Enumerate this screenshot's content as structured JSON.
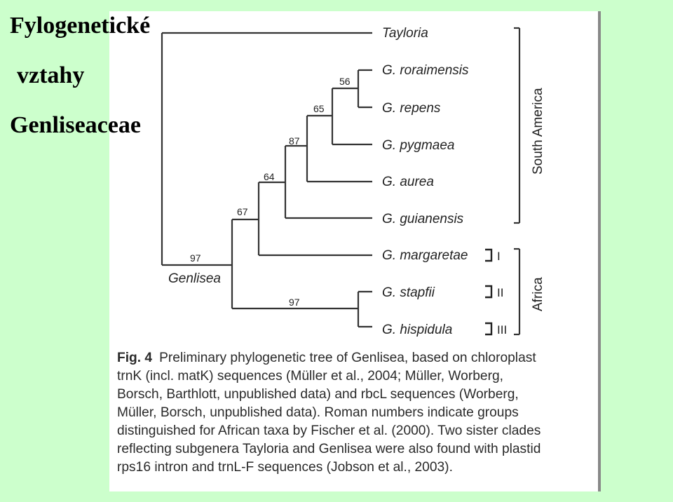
{
  "slide": {
    "title_lines": [
      "Fylogenetické",
      "vztahy",
      "Genliseaceae"
    ]
  },
  "tree": {
    "taxa": {
      "tayloria": "Tayloria",
      "roraimensis": "G. roraimensis",
      "repens": "G. repens",
      "pygmaea": "G. pygmaea",
      "aurea": "G. aurea",
      "guianensis": "G. guianensis",
      "margaretae": "G. margaretae",
      "stapfii": "G. stapfii",
      "hispidula": "G. hispidula"
    },
    "support": {
      "n56": "56",
      "n65": "65",
      "n87": "87",
      "n64": "64",
      "n67": "67",
      "n97_genlisea": "97",
      "n97_africa": "97"
    },
    "clade_label": "Genlisea",
    "regions": {
      "south_america": "South America",
      "africa": "Africa"
    },
    "groups": {
      "g1": "I",
      "g2": "II",
      "g3": "III"
    },
    "line_color": "#333333",
    "bar_glyph_color": "#222222"
  },
  "caption": {
    "fig_label": "Fig. 4",
    "lines": [
      "Preliminary phylogenetic tree of Genlisea, based on chloroplast",
      "trnK (incl. matK) sequences (Müller et al., 2004; Müller, Worberg,",
      "Borsch, Barthlott, unpublished data) and rbcL sequences (Worberg,",
      "Müller, Borsch, unpublished data). Roman numbers indicate groups",
      "distinguished for African taxa by Fischer et al. (2000). Two sister clades",
      "reflecting subgenera Tayloria and Genlisea were also found with plastid",
      "rps16 intron and trnL-F sequences (Jobson et al., 2003)."
    ]
  }
}
